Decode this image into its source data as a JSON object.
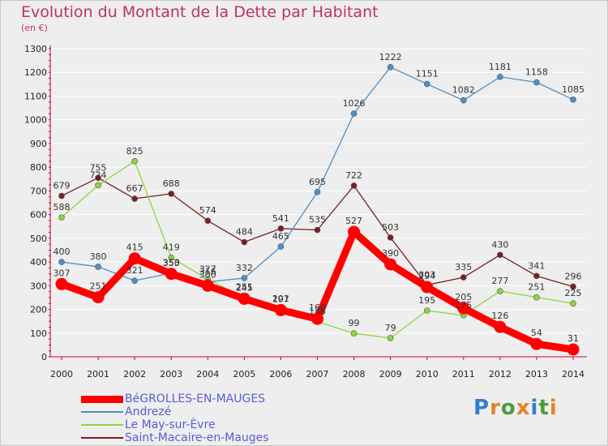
{
  "title": "Evolution du Montant de la Dette par Habitant",
  "subtitle": "(en €)",
  "colors": {
    "title": "#c0306a",
    "grid": "#ffffff",
    "axis": "#cc0033",
    "legend_text": "#5b5bdc"
  },
  "logo": {
    "text": "Proxiti",
    "letters": [
      "P",
      "r",
      "o",
      "x",
      "i",
      "t",
      "i"
    ],
    "letter_colors": [
      "#2f7fd1",
      "#e8822a",
      "#4a9c3c",
      "#e8822a",
      "#2f7fd1",
      "#4a9c3c",
      "#e8822a"
    ]
  },
  "chart_data": {
    "type": "line",
    "title": "Evolution du Montant de la Dette par Habitant",
    "subtitle": "(en €)",
    "xlabel": "",
    "ylabel": "",
    "x": [
      "2000",
      "2001",
      "2002",
      "2003",
      "2004",
      "2005",
      "2006",
      "2007",
      "2008",
      "2009",
      "2010",
      "2011",
      "2012",
      "2013",
      "2014"
    ],
    "ylim": [
      0,
      1300
    ],
    "yticks": [
      0,
      100,
      200,
      300,
      400,
      500,
      600,
      700,
      800,
      900,
      1000,
      1100,
      1200,
      1300
    ],
    "grid": "horizontal",
    "legend_position": "bottom-left",
    "series": [
      {
        "name": "BéGROLLES-EN-MAUGES",
        "color": "#ff0000",
        "values": [
          307,
          251,
          415,
          350,
          300,
          245,
          197,
          160,
          527,
          390,
          294,
          205,
          126,
          54,
          31
        ]
      },
      {
        "name": "Andrezé",
        "color": "#4f8fc7",
        "values": [
          400,
          380,
          321,
          353,
          316,
          332,
          465,
          695,
          1026,
          1222,
          1151,
          1082,
          1181,
          1158,
          1085
        ]
      },
      {
        "name": "Le May-sur-Èvre",
        "color": "#8ad63e",
        "values": [
          588,
          724,
          825,
          419,
          327,
          251,
          201,
          148,
          99,
          79,
          195,
          175,
          277,
          251,
          225
        ]
      },
      {
        "name": "Saint-Macaire-en-Mauges",
        "color": "#7a1e22",
        "values": [
          679,
          755,
          667,
          688,
          574,
          484,
          541,
          535,
          722,
          503,
          303,
          335,
          430,
          341,
          296
        ]
      }
    ]
  }
}
